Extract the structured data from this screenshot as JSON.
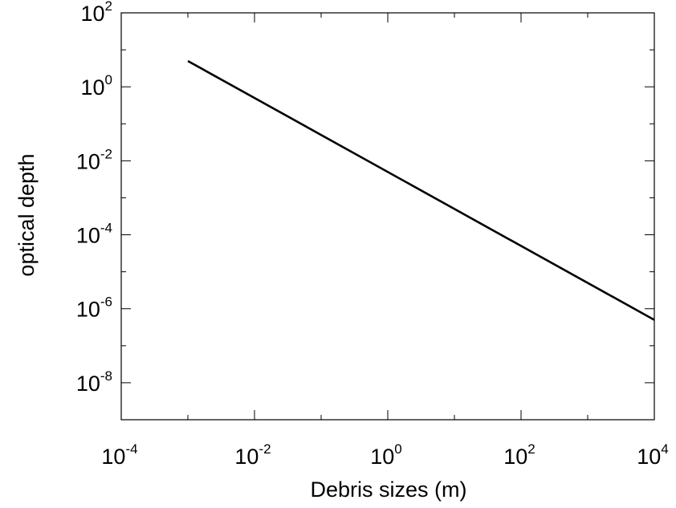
{
  "chart_data": {
    "type": "line",
    "xscale": "log",
    "yscale": "log",
    "xlabel": "Debris sizes (m)",
    "ylabel": "optical depth",
    "xlim": [
      0.0001,
      10000
    ],
    "ylim": [
      1e-09,
      100
    ],
    "grid": false,
    "x_ticks": [
      {
        "base": "10",
        "exp": "-4",
        "value": 0.0001
      },
      {
        "base": "10",
        "exp": "-2",
        "value": 0.01
      },
      {
        "base": "10",
        "exp": "0",
        "value": 1
      },
      {
        "base": "10",
        "exp": "2",
        "value": 100
      },
      {
        "base": "10",
        "exp": "4",
        "value": 10000
      }
    ],
    "y_ticks": [
      {
        "base": "10",
        "exp": "-8",
        "value": 1e-08
      },
      {
        "base": "10",
        "exp": "-6",
        "value": 1e-06
      },
      {
        "base": "10",
        "exp": "-4",
        "value": 0.0001
      },
      {
        "base": "10",
        "exp": "-2",
        "value": 0.01
      },
      {
        "base": "10",
        "exp": "0",
        "value": 1
      },
      {
        "base": "10",
        "exp": "2",
        "value": 100
      }
    ],
    "series": [
      {
        "color": "#000000",
        "points": [
          {
            "x": 0.001,
            "y": 5
          },
          {
            "x": 10000,
            "y": 5e-07
          }
        ]
      }
    ]
  }
}
